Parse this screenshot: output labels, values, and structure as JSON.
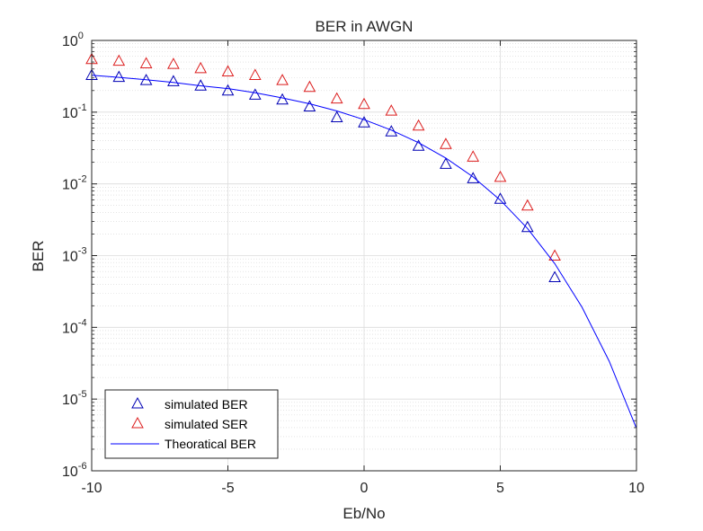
{
  "chart_data": {
    "type": "scatter",
    "title": "BER in AWGN",
    "xlabel": "Eb/No",
    "ylabel": "BER",
    "xlim": [
      -10,
      10
    ],
    "ylim": [
      1e-06,
      1
    ],
    "yscale": "log",
    "grid": true,
    "minor_grid": true,
    "xticks": [
      -10,
      -5,
      0,
      5,
      10
    ],
    "xtick_labels": [
      "-10",
      "-5",
      "0",
      "5",
      "10"
    ],
    "yticks": [
      {
        "value": 1e-06,
        "base": "10",
        "exp": "-6"
      },
      {
        "value": 1e-05,
        "base": "10",
        "exp": "-5"
      },
      {
        "value": 0.0001,
        "base": "10",
        "exp": "-4"
      },
      {
        "value": 0.001,
        "base": "10",
        "exp": "-3"
      },
      {
        "value": 0.01,
        "base": "10",
        "exp": "-2"
      },
      {
        "value": 0.1,
        "base": "10",
        "exp": "-1"
      },
      {
        "value": 1,
        "base": "10",
        "exp": "0"
      }
    ],
    "legend_position": "bottom-left",
    "series": [
      {
        "name": "simulated BER",
        "style": "triangle-marker",
        "color": "#0000b4",
        "x": [
          -10,
          -9,
          -8,
          -7,
          -6,
          -5,
          -4,
          -3,
          -2,
          -1,
          0,
          1,
          2,
          3,
          4,
          5,
          6,
          7
        ],
        "y": [
          0.33,
          0.31,
          0.28,
          0.27,
          0.235,
          0.2,
          0.175,
          0.15,
          0.12,
          0.085,
          0.072,
          0.054,
          0.034,
          0.019,
          0.012,
          0.0062,
          0.0025,
          0.0005
        ]
      },
      {
        "name": "simulated SER",
        "style": "triangle-marker",
        "color": "#dc1e1e",
        "x": [
          -10,
          -9,
          -8,
          -7,
          -6,
          -5,
          -4,
          -3,
          -2,
          -1,
          0,
          1,
          2,
          3,
          4,
          5,
          6,
          7
        ],
        "y": [
          0.55,
          0.52,
          0.48,
          0.47,
          0.41,
          0.37,
          0.33,
          0.28,
          0.225,
          0.155,
          0.13,
          0.105,
          0.065,
          0.036,
          0.024,
          0.0125,
          0.005,
          0.001
        ]
      },
      {
        "name": "Theoratical BER",
        "style": "line",
        "color": "#0000ff",
        "x": [
          -10,
          -9,
          -8,
          -7,
          -6,
          -5,
          -4,
          -3,
          -2,
          -1,
          0,
          1,
          2,
          3,
          4,
          5,
          6,
          7,
          8,
          9,
          10
        ],
        "y": [
          0.327,
          0.306,
          0.283,
          0.259,
          0.233,
          0.213,
          0.186,
          0.158,
          0.131,
          0.104,
          0.0786,
          0.0563,
          0.0375,
          0.0229,
          0.0125,
          0.00595,
          0.00239,
          0.000773,
          0.000191,
          3.36e-05,
          3.9e-06
        ]
      }
    ]
  }
}
